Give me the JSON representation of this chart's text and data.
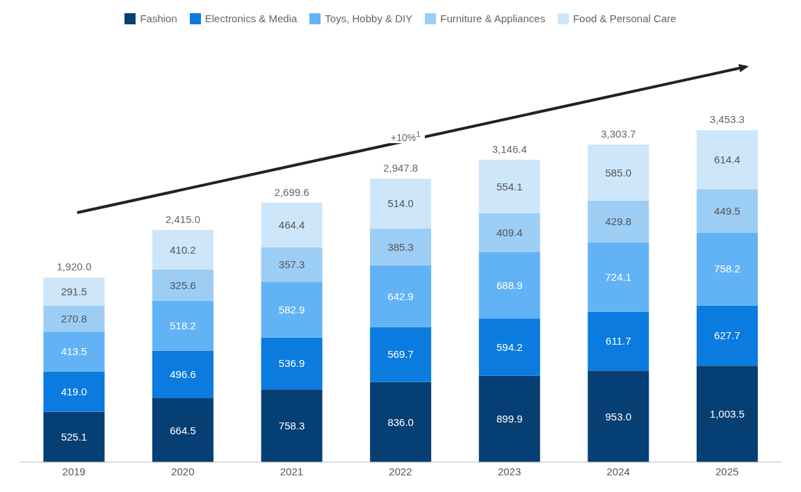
{
  "chart_data": {
    "type": "bar",
    "stacked": true,
    "legend": "top",
    "categories": [
      "2019",
      "2020",
      "2021",
      "2022",
      "2023",
      "2024",
      "2025"
    ],
    "series": [
      {
        "name": "Fashion",
        "color": "#063f73",
        "values": [
          525.1,
          664.5,
          758.3,
          836.0,
          899.9,
          953.0,
          1003.5
        ],
        "value_labels": [
          "525.1",
          "664.5",
          "758.3",
          "836.0",
          "899.9",
          "953.0",
          "1,003.5"
        ]
      },
      {
        "name": "Electronics & Media",
        "color": "#0b7be0",
        "values": [
          419.0,
          496.6,
          536.9,
          569.7,
          594.2,
          611.7,
          627.7
        ],
        "value_labels": [
          "419.0",
          "496.6",
          "536.9",
          "569.7",
          "594.2",
          "611.7",
          "627.7"
        ]
      },
      {
        "name": "Toys, Hobby & DIY",
        "color": "#62b3f5",
        "values": [
          413.5,
          518.2,
          582.9,
          642.9,
          688.9,
          724.1,
          758.2
        ],
        "value_labels": [
          "413.5",
          "518.2",
          "582.9",
          "642.9",
          "688.9",
          "724.1",
          "758.2"
        ]
      },
      {
        "name": "Furniture & Appliances",
        "color": "#9ccdf5",
        "values": [
          270.8,
          325.6,
          357.3,
          385.3,
          409.4,
          429.8,
          449.5
        ],
        "value_labels": [
          "270.8",
          "325.6",
          "357.3",
          "385.3",
          "409.4",
          "429.8",
          "449.5"
        ]
      },
      {
        "name": "Food & Personal Care",
        "color": "#cde6fa",
        "values": [
          291.5,
          410.2,
          464.4,
          514.0,
          554.1,
          585.0,
          614.4
        ],
        "value_labels": [
          "291.5",
          "410.2",
          "464.4",
          "514.0",
          "554.1",
          "585.0",
          "614.4"
        ]
      }
    ],
    "totals": [
      "1,920.0",
      "2,415.0",
      "2,699.6",
      "2,947.8",
      "3,146.4",
      "3,303.7",
      "3,453.3"
    ],
    "annotations": [
      "+10%$^{1}$"
    ]
  }
}
